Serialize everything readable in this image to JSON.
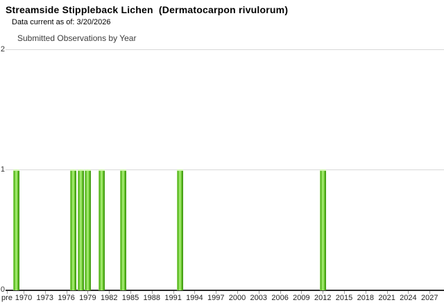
{
  "page": {
    "title": "Streamside Stippleback Lichen  (Dermatocarpon rivulorum)",
    "subtitle": "Data current as of: 3/20/2026"
  },
  "chart_data": {
    "type": "bar",
    "title": "Submitted Observations by Year",
    "xlabel": "",
    "ylabel": "",
    "ylim": [
      0,
      2
    ],
    "y_tick_labels": [
      "0",
      "1",
      "2"
    ],
    "x_tick_labels": [
      "pre",
      "1970",
      "1973",
      "1976",
      "1979",
      "1982",
      "1985",
      "1988",
      "1991",
      "1994",
      "1997",
      "2000",
      "2003",
      "2006",
      "2009",
      "2012",
      "2015",
      "2018",
      "2021",
      "2024",
      "2027"
    ],
    "grid": "horizontal",
    "legend": "none",
    "bar_color_main": "#6abf2e",
    "bar_color_highlight": "#b2ef83",
    "bar_color_edge": "#3b8e0f",
    "bars": [
      {
        "year": "1969",
        "value": 1
      },
      {
        "year": "1977",
        "value": 1
      },
      {
        "year": "1978",
        "value": 1
      },
      {
        "year": "1979",
        "value": 1
      },
      {
        "year": "1981",
        "value": 1
      },
      {
        "year": "1984",
        "value": 1
      },
      {
        "year": "1992",
        "value": 1
      },
      {
        "year": "2012",
        "value": 1
      }
    ]
  }
}
